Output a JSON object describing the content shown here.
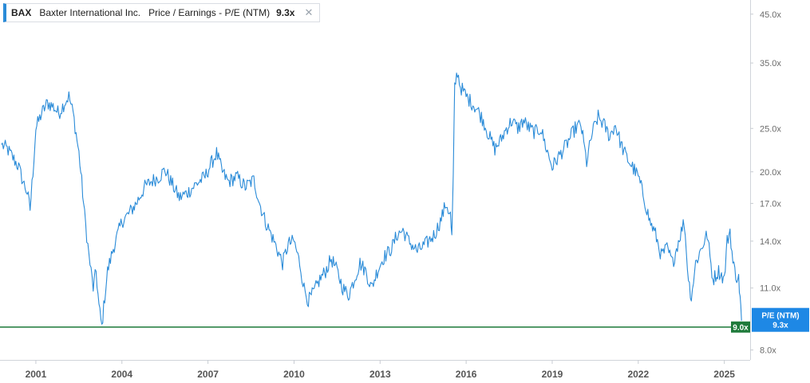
{
  "legend": {
    "ticker": "BAX",
    "company": "Baxter International Inc.",
    "metric": "Price / Earnings - P/E (NTM)",
    "value": "9.3x",
    "close_icon": "close-icon"
  },
  "colors": {
    "series": "#2a8bd8",
    "reference_line": "#1e7a3a",
    "badge": "#1e88e5"
  },
  "price_badge": {
    "label": "P/E (NTM)",
    "value": "9.3x"
  },
  "reference_label": "9.0x",
  "chart_data": {
    "type": "line",
    "title": "",
    "xlabel": "",
    "ylabel": "",
    "y_scale": "log",
    "xlim": [
      1999.75,
      2025.9
    ],
    "ylim": [
      7.6,
      48
    ],
    "y_ticks": [
      {
        "value": 45,
        "label": "45.0x"
      },
      {
        "value": 35,
        "label": "35.0x"
      },
      {
        "value": 25,
        "label": "25.0x"
      },
      {
        "value": 20,
        "label": "20.0x"
      },
      {
        "value": 17,
        "label": "17.0x"
      },
      {
        "value": 14,
        "label": "14.0x"
      },
      {
        "value": 11,
        "label": "11.0x"
      },
      {
        "value": 8,
        "label": "8.0x"
      }
    ],
    "x_ticks": [
      {
        "value": 2001,
        "label": "2001"
      },
      {
        "value": 2004,
        "label": "2004"
      },
      {
        "value": 2007,
        "label": "2007"
      },
      {
        "value": 2010,
        "label": "2010"
      },
      {
        "value": 2013,
        "label": "2013"
      },
      {
        "value": 2016,
        "label": "2016"
      },
      {
        "value": 2019,
        "label": "2019"
      },
      {
        "value": 2022,
        "label": "2022"
      },
      {
        "value": 2025,
        "label": "2025"
      }
    ],
    "reference_value": 9.0,
    "series": [
      {
        "points": [
          [
            1999.8,
            23.0
          ],
          [
            2000.0,
            22.5
          ],
          [
            2000.2,
            21.5
          ],
          [
            2000.4,
            20.5
          ],
          [
            2000.55,
            19.0
          ],
          [
            2000.7,
            18.0
          ],
          [
            2000.8,
            16.5
          ],
          [
            2000.9,
            20.0
          ],
          [
            2001.0,
            25.0
          ],
          [
            2001.2,
            27.0
          ],
          [
            2001.4,
            28.5
          ],
          [
            2001.6,
            28.0
          ],
          [
            2001.8,
            27.0
          ],
          [
            2002.0,
            28.5
          ],
          [
            2002.15,
            29.5
          ],
          [
            2002.3,
            27.0
          ],
          [
            2002.5,
            22.0
          ],
          [
            2002.6,
            19.0
          ],
          [
            2002.7,
            16.0
          ],
          [
            2002.85,
            13.0
          ],
          [
            2003.0,
            11.0
          ],
          [
            2003.1,
            12.0
          ],
          [
            2003.2,
            10.0
          ],
          [
            2003.3,
            9.0
          ],
          [
            2003.4,
            10.5
          ],
          [
            2003.5,
            12.0
          ],
          [
            2003.7,
            13.5
          ],
          [
            2004.0,
            15.5
          ],
          [
            2004.2,
            16.0
          ],
          [
            2004.5,
            17.0
          ],
          [
            2004.8,
            18.5
          ],
          [
            2005.0,
            19.0
          ],
          [
            2005.3,
            19.5
          ],
          [
            2005.5,
            20.2
          ],
          [
            2005.8,
            18.5
          ],
          [
            2006.0,
            17.5
          ],
          [
            2006.3,
            18.0
          ],
          [
            2006.6,
            18.8
          ],
          [
            2006.9,
            19.5
          ],
          [
            2007.1,
            20.8
          ],
          [
            2007.3,
            22.0
          ],
          [
            2007.5,
            20.0
          ],
          [
            2007.7,
            19.0
          ],
          [
            2008.0,
            19.5
          ],
          [
            2008.3,
            18.5
          ],
          [
            2008.6,
            19.2
          ],
          [
            2008.8,
            17.0
          ],
          [
            2009.0,
            15.5
          ],
          [
            2009.2,
            14.5
          ],
          [
            2009.4,
            13.5
          ],
          [
            2009.6,
            12.5
          ],
          [
            2009.8,
            13.8
          ],
          [
            2010.0,
            14.0
          ],
          [
            2010.2,
            12.5
          ],
          [
            2010.35,
            11.0
          ],
          [
            2010.5,
            10.3
          ],
          [
            2010.7,
            10.8
          ],
          [
            2010.9,
            11.5
          ],
          [
            2011.1,
            12.0
          ],
          [
            2011.3,
            12.8
          ],
          [
            2011.5,
            12.0
          ],
          [
            2011.7,
            11.0
          ],
          [
            2011.9,
            10.6
          ],
          [
            2012.1,
            11.5
          ],
          [
            2012.3,
            12.5
          ],
          [
            2012.5,
            12.0
          ],
          [
            2012.7,
            11.0
          ],
          [
            2012.9,
            12.0
          ],
          [
            2013.1,
            12.8
          ],
          [
            2013.4,
            13.5
          ],
          [
            2013.6,
            14.5
          ],
          [
            2013.8,
            14.8
          ],
          [
            2014.0,
            14.0
          ],
          [
            2014.3,
            13.3
          ],
          [
            2014.6,
            13.8
          ],
          [
            2014.9,
            14.5
          ],
          [
            2015.1,
            15.5
          ],
          [
            2015.3,
            17.0
          ],
          [
            2015.45,
            16.0
          ],
          [
            2015.5,
            14.2
          ],
          [
            2015.55,
            19.5
          ],
          [
            2015.6,
            31.0
          ],
          [
            2015.7,
            33.5
          ],
          [
            2015.8,
            31.0
          ],
          [
            2016.0,
            29.5
          ],
          [
            2016.2,
            28.5
          ],
          [
            2016.4,
            27.5
          ],
          [
            2016.6,
            26.0
          ],
          [
            2016.8,
            24.0
          ],
          [
            2017.0,
            22.5
          ],
          [
            2017.2,
            23.5
          ],
          [
            2017.4,
            25.0
          ],
          [
            2017.6,
            26.0
          ],
          [
            2017.8,
            25.0
          ],
          [
            2018.0,
            26.0
          ],
          [
            2018.2,
            25.0
          ],
          [
            2018.4,
            24.5
          ],
          [
            2018.6,
            25.0
          ],
          [
            2018.8,
            22.5
          ],
          [
            2019.0,
            20.5
          ],
          [
            2019.2,
            21.5
          ],
          [
            2019.5,
            23.0
          ],
          [
            2019.8,
            25.0
          ],
          [
            2020.0,
            25.5
          ],
          [
            2020.2,
            21.0
          ],
          [
            2020.4,
            24.5
          ],
          [
            2020.6,
            26.5
          ],
          [
            2020.8,
            25.5
          ],
          [
            2021.0,
            24.0
          ],
          [
            2021.2,
            25.5
          ],
          [
            2021.4,
            23.0
          ],
          [
            2021.6,
            21.5
          ],
          [
            2021.8,
            20.5
          ],
          [
            2022.0,
            19.5
          ],
          [
            2022.2,
            17.5
          ],
          [
            2022.4,
            15.5
          ],
          [
            2022.6,
            14.5
          ],
          [
            2022.8,
            13.0
          ],
          [
            2023.0,
            13.5
          ],
          [
            2023.2,
            12.5
          ],
          [
            2023.4,
            14.0
          ],
          [
            2023.6,
            15.5
          ],
          [
            2023.75,
            11.5
          ],
          [
            2023.85,
            10.5
          ],
          [
            2024.0,
            12.5
          ],
          [
            2024.2,
            13.5
          ],
          [
            2024.4,
            14.5
          ],
          [
            2024.6,
            11.5
          ],
          [
            2024.8,
            12.0
          ],
          [
            2025.0,
            11.5
          ],
          [
            2025.1,
            14.0
          ],
          [
            2025.2,
            14.8
          ],
          [
            2025.3,
            12.5
          ],
          [
            2025.4,
            11.8
          ],
          [
            2025.5,
            11.5
          ],
          [
            2025.55,
            10.5
          ],
          [
            2025.6,
            9.3
          ]
        ]
      }
    ]
  }
}
